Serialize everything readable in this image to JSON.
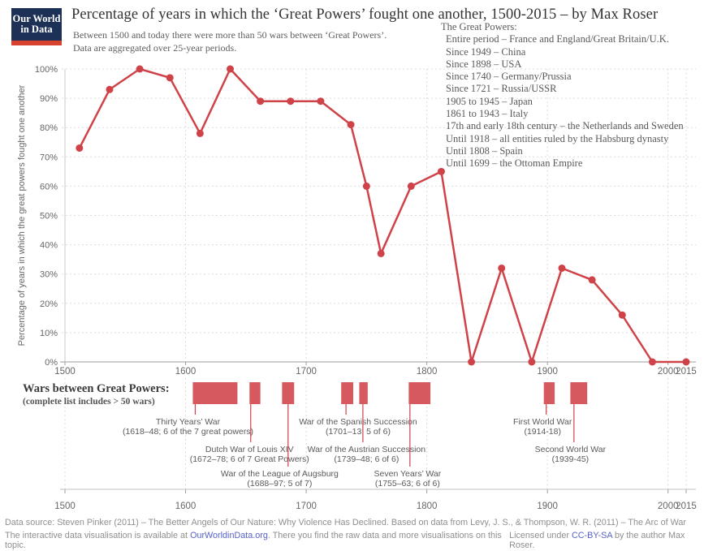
{
  "logo": {
    "line1": "Our World",
    "line2": "in Data"
  },
  "header": {
    "title": "Percentage of years in which the ‘Great Powers’ fought one another, 1500-2015 – by Max Roser",
    "subtitle_line1": "Between 1500 and today there were more than 50 wars between ‘Great Powers’.",
    "subtitle_line2": "Data are aggregated over 25-year periods."
  },
  "great_powers": {
    "heading": "The Great Powers:",
    "items": [
      "Entire period – France and England/Great Britain/U.K.",
      "Since 1949 – China",
      "Since 1898 – USA",
      "Since 1740 – Germany/Prussia",
      "Since 1721 – Russia/USSR",
      "1905 to 1945 – Japan",
      "1861 to 1943 – Italy",
      "17th and early 18th century – the Netherlands and Sweden",
      "Until 1918 – all entities ruled by the Habsburg dynasty",
      "Until 1808 – Spain",
      "Until 1699 – the Ottoman Empire"
    ]
  },
  "chart_data": {
    "type": "line",
    "ylabel": "Percentage of years in which the great powers fought one another",
    "xlim": [
      1500,
      2015
    ],
    "ylim": [
      0,
      100
    ],
    "x_ticks": [
      1500,
      1600,
      1700,
      1800,
      1900,
      2000,
      2015
    ],
    "y_tick_labels": [
      "0%",
      "10%",
      "20%",
      "30%",
      "40%",
      "50%",
      "60%",
      "70%",
      "80%",
      "90%",
      "100%"
    ],
    "points": [
      {
        "x": 1512,
        "y": 73
      },
      {
        "x": 1537,
        "y": 93
      },
      {
        "x": 1562,
        "y": 100
      },
      {
        "x": 1587,
        "y": 97
      },
      {
        "x": 1612,
        "y": 78
      },
      {
        "x": 1637,
        "y": 100
      },
      {
        "x": 1662,
        "y": 89
      },
      {
        "x": 1687,
        "y": 89
      },
      {
        "x": 1712,
        "y": 89
      },
      {
        "x": 1737,
        "y": 81
      },
      {
        "x": 1750,
        "y": 60
      },
      {
        "x": 1762,
        "y": 37
      },
      {
        "x": 1787,
        "y": 60
      },
      {
        "x": 1812,
        "y": 65
      },
      {
        "x": 1837,
        "y": 0
      },
      {
        "x": 1862,
        "y": 32
      },
      {
        "x": 1887,
        "y": 0
      },
      {
        "x": 1912,
        "y": 32
      },
      {
        "x": 1937,
        "y": 28
      },
      {
        "x": 1962,
        "y": 16
      },
      {
        "x": 1987,
        "y": 0
      },
      {
        "x": 2015,
        "y": 0
      }
    ],
    "wars_timeline": {
      "heading": "Wars between Great Powers:",
      "subheading": "(complete list includes > 50 wars)",
      "wars": [
        {
          "name": "Thirty Years’ War",
          "detail": "(1618–48; 6 of the 7 great powers)",
          "bar": [
            1606,
            1643
          ],
          "leader_x": 1608,
          "label_cx": 1602,
          "row": 1
        },
        {
          "name": "Dutch War of Louis XIV",
          "detail": "(1672–78; 6 of 7 Great Powers)",
          "bar": [
            1653,
            1662
          ],
          "leader_x": 1654,
          "label_cx": 1653,
          "row": 2
        },
        {
          "name": "War of the League of Augsburg",
          "detail": "(1688–97; 5 of 7)",
          "bar": [
            1680,
            1690
          ],
          "leader_x": 1685,
          "label_cx": 1678,
          "row": 3
        },
        {
          "name": "War of the Spanish Succession",
          "detail": "(1701–13; 5 of 6)",
          "bar": [
            1729,
            1739
          ],
          "leader_x": 1733,
          "label_cx": 1743,
          "row": 1
        },
        {
          "name": "War of the Austrian Succession",
          "detail": "(1739–48; 6 of 6)",
          "bar": [
            1744,
            1751
          ],
          "leader_x": 1747,
          "label_cx": 1750,
          "row": 2
        },
        {
          "name": "Seven Years’ War",
          "detail": "(1755–63; 6 of 6)",
          "bar": [
            1785,
            1803
          ],
          "leader_x": 1786,
          "label_cx": 1784,
          "row": 3
        },
        {
          "name": "First World War",
          "detail": "(1914-18)",
          "bar": [
            1897,
            1906
          ],
          "leader_x": 1899,
          "label_cx": 1896,
          "row": 1
        },
        {
          "name": "Second World War",
          "detail": "(1939-45)",
          "bar": [
            1919,
            1933
          ],
          "leader_x": 1922,
          "label_cx": 1919,
          "row": 2
        }
      ]
    }
  },
  "footer": {
    "line1": "Data source: Steven Pinker (2011) – The Better Angels of Our Nature: Why Violence Has Declined. Based on data from Levy, J. S., & Thompson, W. R. (2011) – The Arc of War",
    "line2_pre": "The interactive data visualisation is available at ",
    "line2_link": "OurWorldinData.org",
    "line2_post": ". There you find the raw data and more visualisations on this topic.",
    "license_pre": "Licensed under ",
    "license_link": "CC-BY-SA",
    "license_post": " by the author Max Roser."
  },
  "colors": {
    "accent_red": "#cf4248",
    "link_blue": "#5661c9",
    "logo_navy": "#1d3156",
    "logo_red": "#d8432f",
    "gridline": "#dcdcdc",
    "axis_text": "#666666"
  }
}
